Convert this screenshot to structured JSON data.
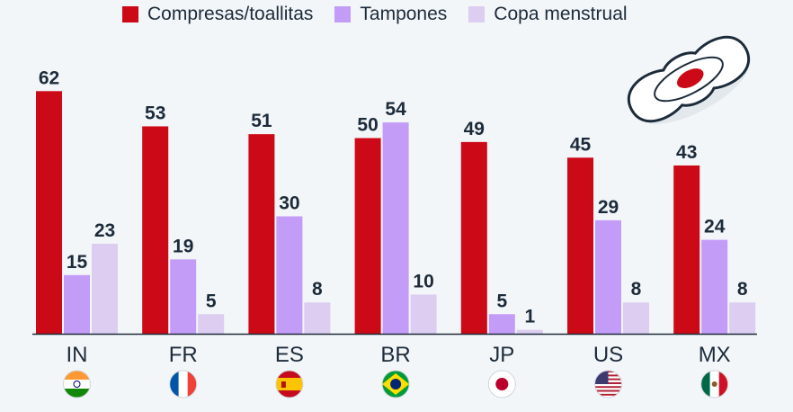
{
  "colors": {
    "compresas": "#cc0a17",
    "tampones": "#c39cf7",
    "copa": "#dccdf1",
    "text": "#1c2b3a",
    "axis": "#1c2b3a"
  },
  "legend": [
    {
      "label": "Compresas/toallitas",
      "color": "#cc0a17"
    },
    {
      "label": "Tampones",
      "color": "#c39cf7"
    },
    {
      "label": "Copa menstrual",
      "color": "#dccdf1"
    }
  ],
  "icon": "sanitary-pad-icon",
  "chart_data": {
    "type": "bar",
    "categories": [
      "IN",
      "FR",
      "ES",
      "BR",
      "JP",
      "US",
      "MX"
    ],
    "flags": [
      "india-flag-icon",
      "france-flag-icon",
      "spain-flag-icon",
      "brazil-flag-icon",
      "japan-flag-icon",
      "usa-flag-icon",
      "mexico-flag-icon"
    ],
    "series": [
      {
        "name": "Compresas/toallitas",
        "values": [
          62,
          53,
          51,
          50,
          49,
          45,
          43
        ]
      },
      {
        "name": "Tampones",
        "values": [
          15,
          19,
          30,
          54,
          5,
          29,
          24
        ]
      },
      {
        "name": "Copa menstrual",
        "values": [
          23,
          5,
          8,
          10,
          1,
          8,
          8
        ]
      }
    ],
    "ylim": [
      0,
      62
    ],
    "grid": false,
    "legend_position": "top"
  }
}
